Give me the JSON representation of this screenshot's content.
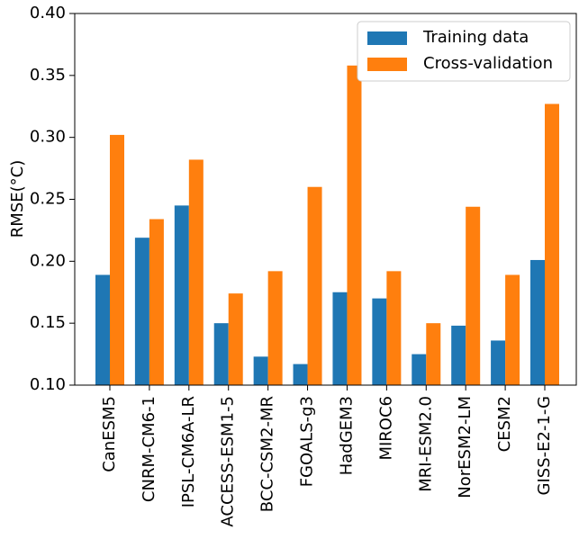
{
  "chart_data": {
    "type": "bar",
    "ylabel": "RMSE(°C)",
    "categories": [
      "CanESM5",
      "CNRM-CM6-1",
      "IPSL-CM6A-LR",
      "ACCESS-ESM1-5",
      "BCC-CSM2-MR",
      "FGOALS-g3",
      "HadGEM3",
      "MIROC6",
      "MRI-ESM2.0",
      "NorESM2-LM",
      "CESM2",
      "GISS-E2-1-G"
    ],
    "series": [
      {
        "name": "Training data",
        "color": "#1f77b4",
        "values": [
          0.189,
          0.219,
          0.245,
          0.15,
          0.123,
          0.117,
          0.175,
          0.17,
          0.125,
          0.148,
          0.136,
          0.201
        ]
      },
      {
        "name": "Cross-validation",
        "color": "#ff7f0e",
        "values": [
          0.302,
          0.234,
          0.282,
          0.174,
          0.192,
          0.26,
          0.358,
          0.192,
          0.15,
          0.244,
          0.189,
          0.327
        ]
      }
    ],
    "ylim": [
      0.1,
      0.4
    ],
    "yticks": [
      {
        "value": 0.1,
        "label": "0.10"
      },
      {
        "value": 0.15,
        "label": "0.15"
      },
      {
        "value": 0.2,
        "label": "0.20"
      },
      {
        "value": 0.25,
        "label": "0.25"
      },
      {
        "value": 0.3,
        "label": "0.30"
      },
      {
        "value": 0.35,
        "label": "0.35"
      },
      {
        "value": 0.4,
        "label": "0.40"
      }
    ],
    "legend": "upper right"
  }
}
